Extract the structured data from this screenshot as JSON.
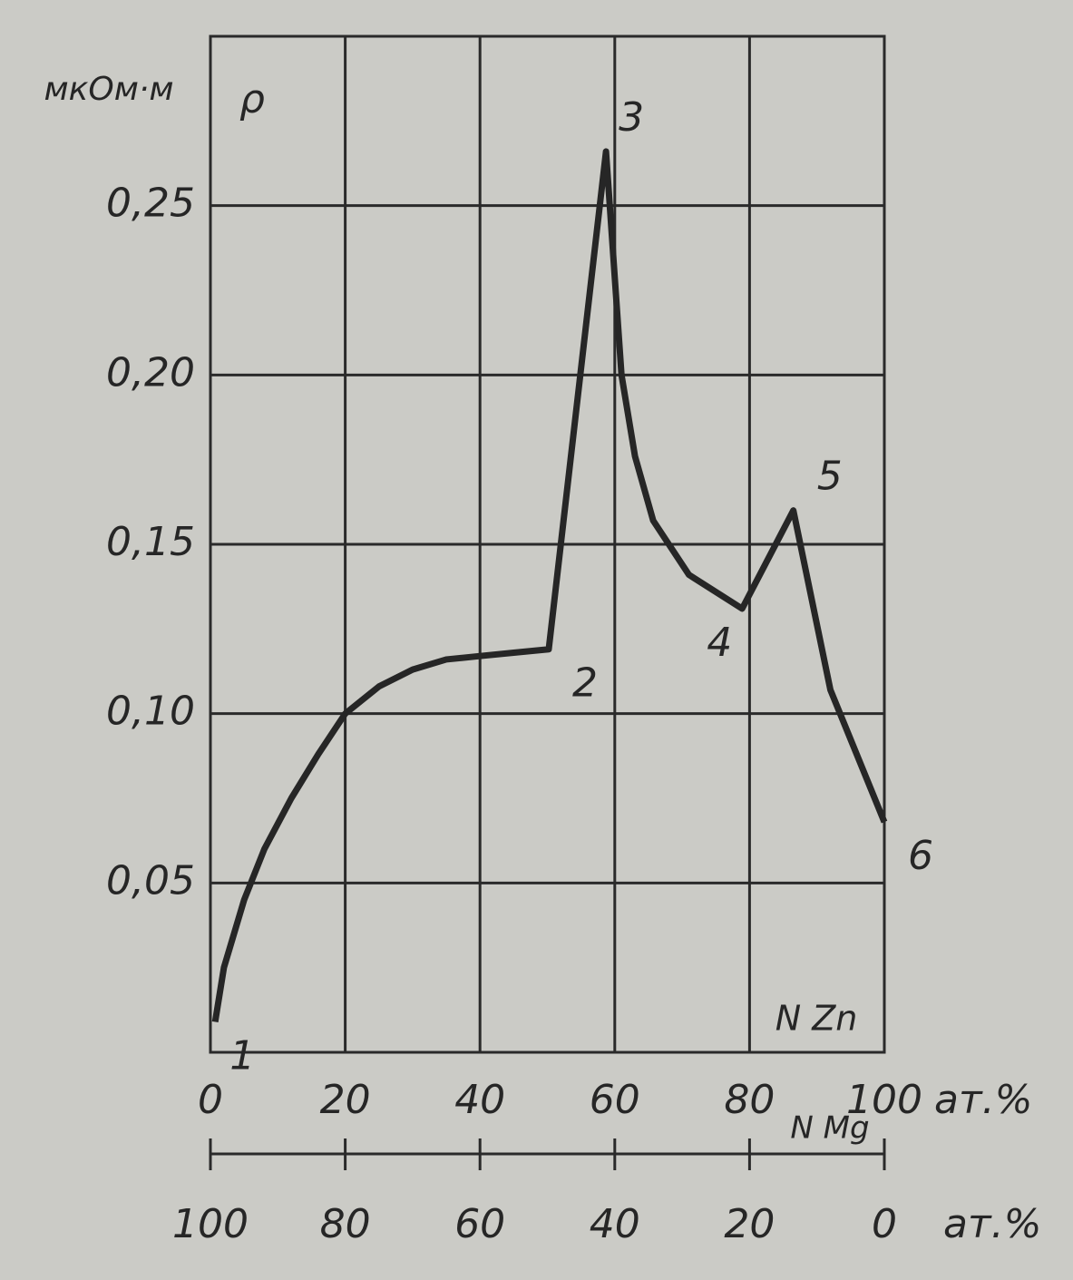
{
  "chart_data": {
    "type": "line",
    "y_unit": "мкОм·м",
    "y_label": "ρ",
    "x_label": "N Zn",
    "x_unit": "ат.%",
    "x2_label": "N Mg",
    "x2_unit": "ат.%",
    "x": [
      0.7,
      2,
      5,
      8,
      12,
      16,
      20,
      25,
      30,
      35,
      40,
      45,
      50.2,
      58.7,
      61,
      63,
      65.7,
      71,
      78.9,
      86.5,
      92,
      100
    ],
    "values": [
      0.009,
      0.025,
      0.045,
      0.06,
      0.075,
      0.088,
      0.1,
      0.108,
      0.113,
      0.116,
      0.117,
      0.118,
      0.119,
      0.266,
      0.2,
      0.176,
      0.157,
      0.141,
      0.131,
      0.16,
      0.107,
      0.068
    ],
    "point_labels": [
      "1",
      null,
      null,
      null,
      null,
      null,
      null,
      null,
      null,
      null,
      null,
      null,
      "2",
      "3",
      null,
      null,
      null,
      null,
      "4",
      "5",
      null,
      "6"
    ],
    "color": "#262626",
    "xlim": [
      0,
      100
    ],
    "xticks": [
      0,
      20,
      40,
      60,
      80,
      100
    ],
    "x2lim": [
      100,
      0
    ],
    "x2ticks": [
      100,
      80,
      60,
      40,
      20,
      0
    ],
    "ylim": [
      0,
      0.3
    ],
    "yticks": [
      {
        "value": 0.05,
        "label": "0,05"
      },
      {
        "value": 0.1,
        "label": "0,10"
      },
      {
        "value": 0.15,
        "label": "0,15"
      },
      {
        "value": 0.2,
        "label": "0,20"
      },
      {
        "value": 0.25,
        "label": "0,25"
      }
    ],
    "grid": true
  }
}
